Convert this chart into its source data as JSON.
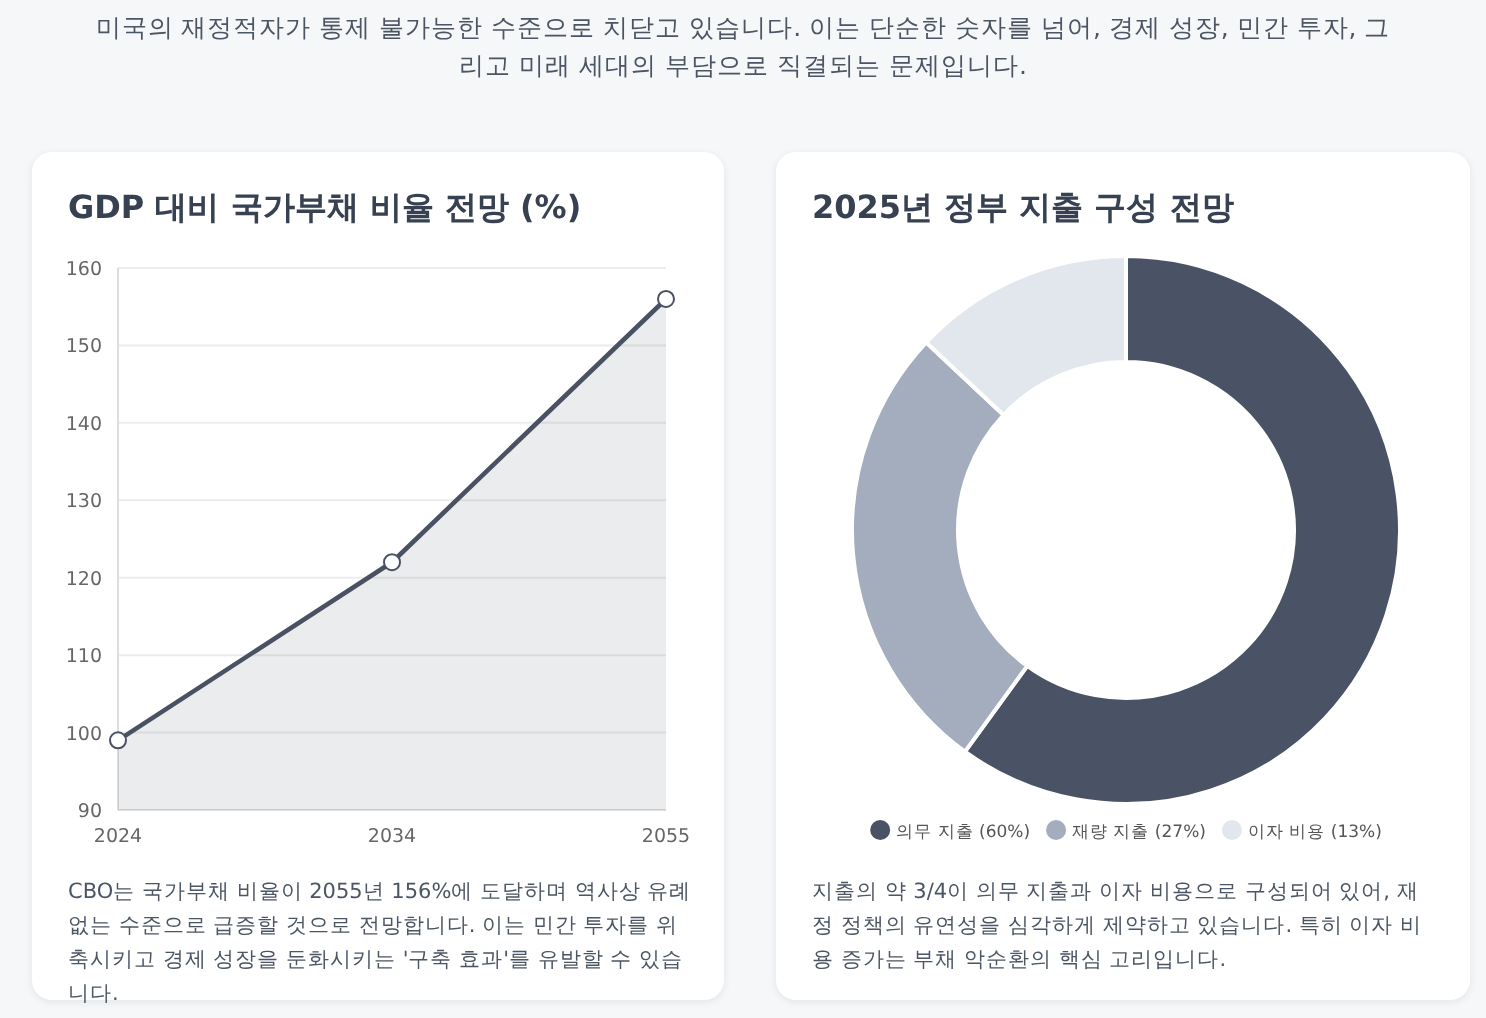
{
  "chart_data": [
    {
      "type": "area",
      "title": "GDP 대비 국가부채 비율 전망 (%)",
      "subtitle": "미국의 재정적자가 통제 불가능한 수준으로 치닫고 있습니다. 이는 단순한 숫자를 넘어, 경제 성장, 민간 투자, 그리고 미래 세대의 부담으로 직결되는 문제입니다.",
      "categories": [
        "2024",
        "2034",
        "2055"
      ],
      "series": [
        {
          "color": "#4a5163",
          "values": [
            99,
            122,
            156
          ]
        }
      ],
      "ylim": [
        90,
        160
      ],
      "yticks": [
        90,
        100,
        110,
        120,
        130,
        140,
        150,
        160
      ],
      "grid": "y",
      "marker": "circle",
      "annotations": [
        "CBO는 국가부채 비율이 2055년 156%에 도달하며 역사상 유례없는 수준으로 급증할 것으로 전망합니다. 이는 민간 투자를 위축시키고 경제 성장을 둔화시키는 '구축 효과'를 유발할 수 있습니다."
      ]
    },
    {
      "type": "donut",
      "title": "2025년 정부 지출 구성 전망",
      "categories": [
        "의무 지출 (60%)",
        "재량 지출 (27%)",
        "이자 비용 (13%)"
      ],
      "values": [
        60,
        27,
        13
      ],
      "colors": [
        "#4a5365",
        "#a3adbd",
        "#e2e6ed"
      ],
      "legend": "bottom",
      "annotations": [
        "지출의 약 3/4이 의무 지출과 이자 비용으로 구성되어 있어, 재정 정책의 유연성을 심각하게 제약하고 있습니다. 특히 이자 비용 증가는 부채 악순환의 핵심 고리입니다."
      ]
    }
  ]
}
